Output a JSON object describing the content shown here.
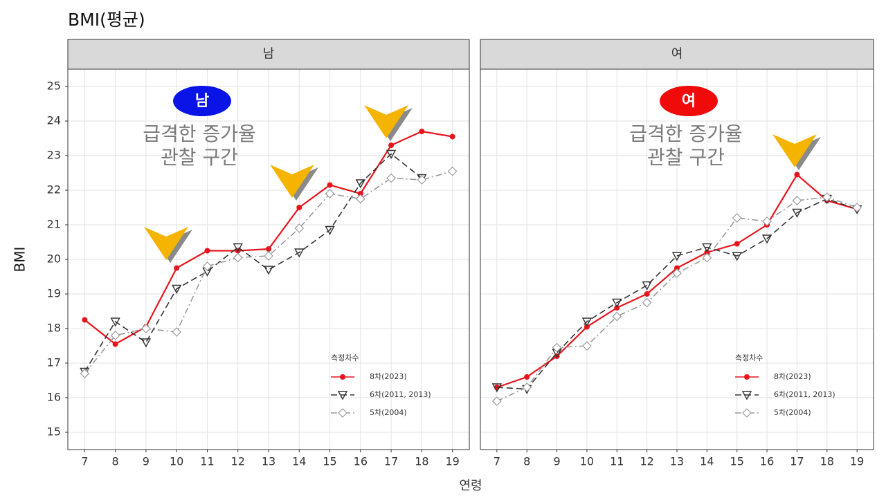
{
  "title": "BMI(평균)",
  "x_label": "연령",
  "y_label": "BMI",
  "chart_data": [
    {
      "type": "line",
      "title": "남",
      "badge": "남",
      "badge_color": "#0a14e6",
      "annotation_lines": [
        "급격한 증가율",
        "관찰 구간"
      ],
      "x": [
        7,
        8,
        9,
        10,
        11,
        12,
        13,
        14,
        15,
        16,
        17,
        18,
        19
      ],
      "xlim": [
        6.45,
        19.55
      ],
      "xticks": [
        7,
        8,
        9,
        10,
        11,
        12,
        13,
        14,
        15,
        16,
        17,
        18,
        19
      ],
      "ylim": [
        14.5,
        25.5
      ],
      "yticks": [
        15,
        16,
        17,
        18,
        19,
        20,
        21,
        22,
        23,
        24,
        25
      ],
      "grid": true,
      "legend_title": "측정차수",
      "legend_position": "lower right",
      "series": [
        {
          "name": "8차(2023)",
          "color": "#e8141c",
          "marker": "circle",
          "dash": "solid",
          "values": [
            18.25,
            17.55,
            18.05,
            19.75,
            20.25,
            20.25,
            20.3,
            21.5,
            22.15,
            21.9,
            23.3,
            23.7,
            23.55
          ]
        },
        {
          "name": "6차(2011, 2013)",
          "color": "#333333",
          "marker": "triangle-down",
          "dash": "dashed",
          "values": [
            16.75,
            18.2,
            17.6,
            19.15,
            19.65,
            20.35,
            19.7,
            20.2,
            20.85,
            22.2,
            23.05,
            22.35,
            null
          ]
        },
        {
          "name": "5차(2004)",
          "color": "#9a9a9a",
          "marker": "diamond",
          "dash": "dashdot",
          "values": [
            16.7,
            17.8,
            18.0,
            17.9,
            19.8,
            20.05,
            20.1,
            20.9,
            21.9,
            21.75,
            22.35,
            22.3,
            22.55
          ]
        }
      ]
    },
    {
      "type": "line",
      "title": "여",
      "badge": "여",
      "badge_color": "#f00a0a",
      "annotation_lines": [
        "급격한 증가율",
        "관찰 구간"
      ],
      "x": [
        7,
        8,
        9,
        10,
        11,
        12,
        13,
        14,
        15,
        16,
        17,
        18,
        19
      ],
      "xlim": [
        6.45,
        19.55
      ],
      "xticks": [
        7,
        8,
        9,
        10,
        11,
        12,
        13,
        14,
        15,
        16,
        17,
        18,
        19
      ],
      "ylim": [
        14.5,
        25.5
      ],
      "yticks": [
        15,
        16,
        17,
        18,
        19,
        20,
        21,
        22,
        23,
        24,
        25
      ],
      "grid": true,
      "legend_title": "측정차수",
      "legend_position": "lower right",
      "series": [
        {
          "name": "8차(2023)",
          "color": "#e8141c",
          "marker": "circle",
          "dash": "solid",
          "values": [
            16.3,
            16.6,
            17.2,
            18.05,
            18.6,
            19.0,
            19.75,
            20.2,
            20.45,
            21.0,
            22.45,
            21.7,
            21.45
          ]
        },
        {
          "name": "6차(2011, 2013)",
          "color": "#333333",
          "marker": "triangle-down",
          "dash": "dashed",
          "values": [
            16.3,
            16.25,
            17.3,
            18.2,
            18.75,
            19.25,
            20.1,
            20.35,
            20.1,
            20.6,
            21.35,
            21.75,
            21.45
          ]
        },
        {
          "name": "5차(2004)",
          "color": "#9a9a9a",
          "marker": "diamond",
          "dash": "dashdot",
          "values": [
            15.9,
            16.3,
            17.45,
            17.5,
            18.35,
            18.75,
            19.6,
            20.05,
            21.2,
            21.1,
            21.7,
            21.8,
            21.5
          ]
        }
      ]
    }
  ]
}
